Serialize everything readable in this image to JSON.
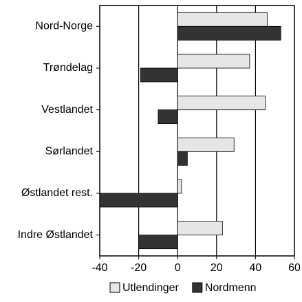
{
  "chart_data": {
    "type": "barh",
    "categories": [
      "Nord-Norge",
      "Trøndelag",
      "Vestlandet",
      "Sørlandet",
      "Østlandet rest.",
      "Indre Østlandet"
    ],
    "series": [
      {
        "name": "Utlendinger",
        "color": "#e6e6e6",
        "values": [
          46,
          37,
          45,
          29,
          2,
          23
        ]
      },
      {
        "name": "Nordmenn",
        "color": "#333333",
        "values": [
          53,
          -19,
          -10,
          5,
          -40,
          -20
        ]
      }
    ],
    "xlim": [
      -40,
      60
    ],
    "xticks": [
      -40,
      -20,
      0,
      20,
      40,
      60
    ],
    "grid": true,
    "legend": "bottom"
  }
}
